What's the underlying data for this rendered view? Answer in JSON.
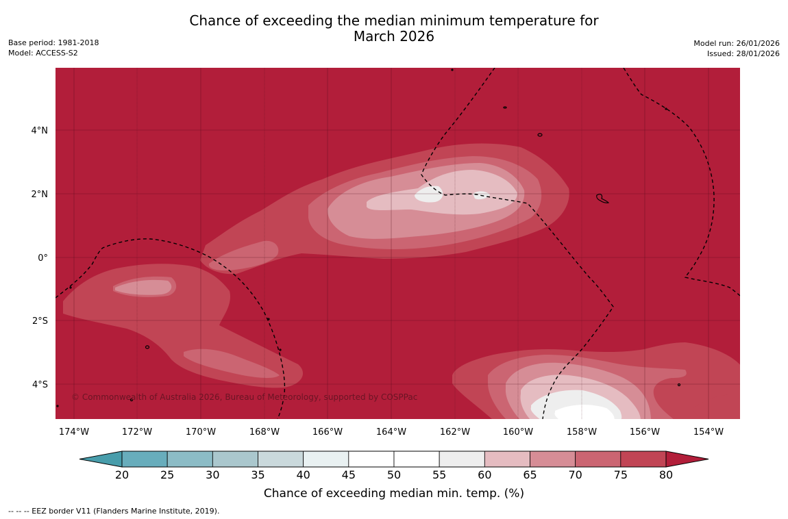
{
  "title": {
    "line1": "Chance of exceeding the median minimum temperature for",
    "line2": "March 2026"
  },
  "meta_left": {
    "base_period": "Base period: 1981-2018",
    "model": "Model: ACCESS-S2"
  },
  "meta_right": {
    "model_run": "Model run: 26/01/2026",
    "issued": "Issued: 28/01/2026"
  },
  "map": {
    "background_color": "#b21e3a",
    "credit": "© Commonwealth of Australia 2026, Bureau of Meteorology, supported by COSPPac",
    "longitude_labels": [
      "174°W",
      "172°W",
      "170°W",
      "168°W",
      "166°W",
      "164°W",
      "162°W",
      "160°W",
      "158°W",
      "156°W",
      "154°W"
    ],
    "latitude_labels": [
      "4°N",
      "2°N",
      "0°",
      "2°S",
      "4°S"
    ],
    "extent": {
      "lon_min": -175.6,
      "lon_max": -153.1,
      "lat_min": -4.9,
      "lat_max": 6.3
    },
    "regions_colors": {
      "p75": "#c14555",
      "p70": "#cb6572",
      "p65": "#d68d96",
      "p60": "#e5bcc1",
      "p55": "#eeeeee",
      "p50": "#ffffff"
    }
  },
  "colorbar": {
    "title": "Chance of exceeding median min. temp. (%)",
    "ticks": [
      "20",
      "25",
      "30",
      "35",
      "40",
      "45",
      "50",
      "55",
      "60",
      "65",
      "70",
      "75",
      "80"
    ],
    "colors": [
      "#68adbc",
      "#8cbcc6",
      "#aac7cd",
      "#cad9dc",
      "#e9f1f2",
      "#ffffff",
      "#ffffff",
      "#eeeeee",
      "#e5bcc1",
      "#d68d96",
      "#cb6572",
      "#c14555"
    ],
    "under_color": "#489dab",
    "over_color": "#b21e3a"
  },
  "footnote": "--  --  -- EEZ border V11 (Flanders Marine Institute, 2019)."
}
